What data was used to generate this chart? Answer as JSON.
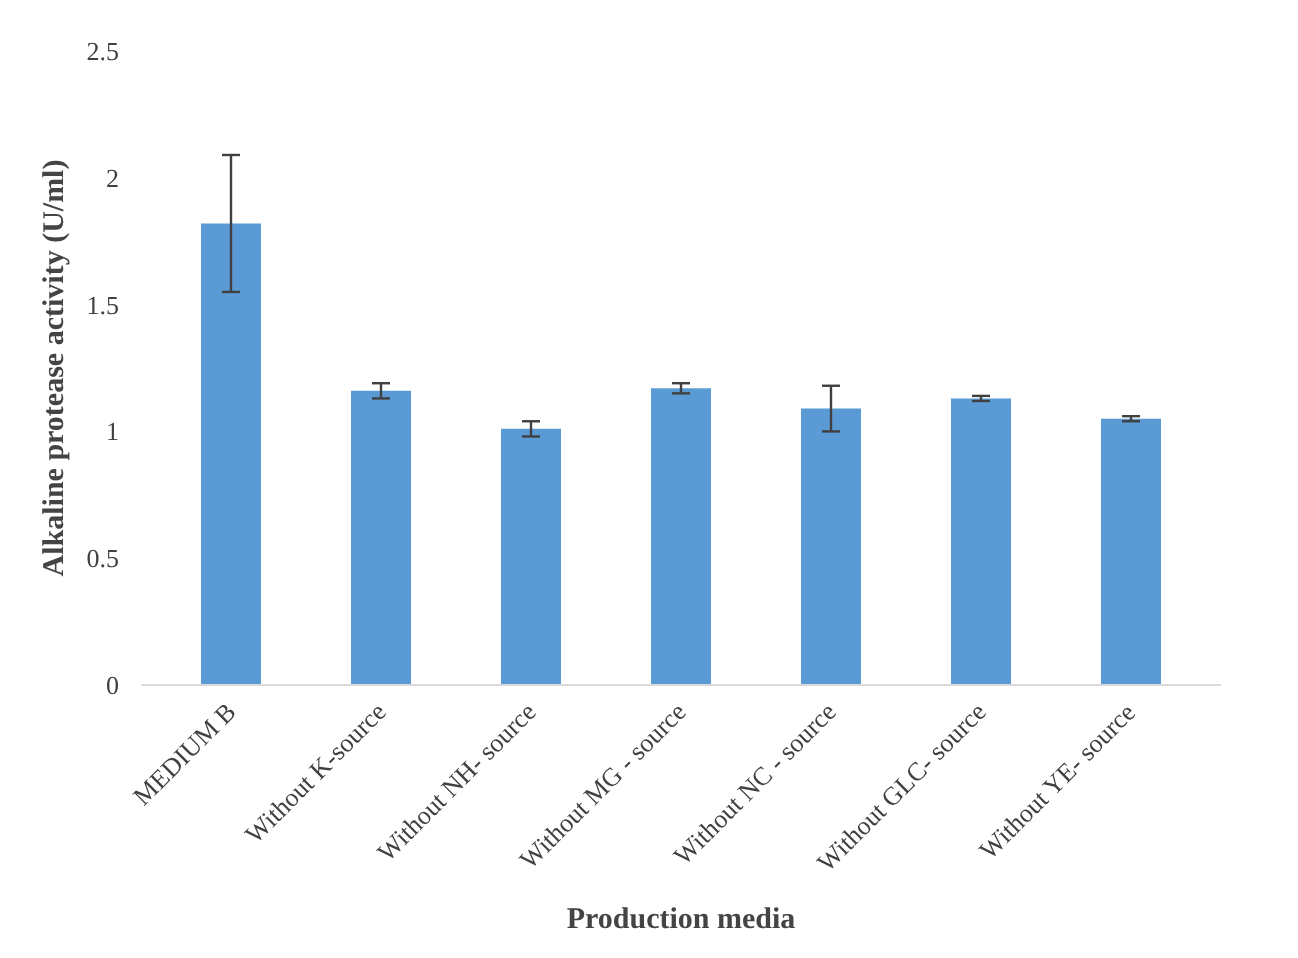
{
  "chart_data": {
    "type": "bar",
    "xlabel": "Production media",
    "ylabel": "Alkaline protease activity (U/ml)",
    "categories": [
      "MEDIUM B",
      "Without K-source",
      "Without NH- source",
      "Without MG - source",
      "Without NC - source",
      "Without GLC- source",
      "Without YE- source"
    ],
    "values": [
      1.82,
      1.16,
      1.01,
      1.17,
      1.09,
      1.13,
      1.05
    ],
    "errors": [
      0.27,
      0.03,
      0.03,
      0.02,
      0.09,
      0.01,
      0.01
    ],
    "color": "#5b9bd5",
    "ylim": [
      0,
      2.5
    ],
    "yticks": [
      0,
      0.5,
      1,
      1.5,
      2,
      2.5
    ],
    "grid": false
  }
}
